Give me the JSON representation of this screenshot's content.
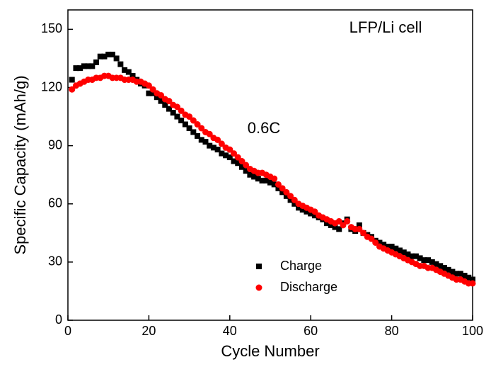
{
  "chart_data": {
    "type": "scatter",
    "x_label": "Cycle Number",
    "y_label": "Specific Capacity (mAh/g)",
    "annotations": [
      "LFP/Li cell",
      "0.6C"
    ],
    "xlim": [
      0,
      100
    ],
    "xticks": [
      0,
      20,
      40,
      60,
      80,
      100
    ],
    "ylim": [
      0,
      160
    ],
    "yticks": [
      0,
      30,
      60,
      90,
      120,
      150
    ],
    "x": [
      1,
      2,
      3,
      4,
      5,
      6,
      7,
      8,
      9,
      10,
      11,
      12,
      13,
      14,
      15,
      16,
      17,
      18,
      19,
      20,
      21,
      22,
      23,
      24,
      25,
      26,
      27,
      28,
      29,
      30,
      31,
      32,
      33,
      34,
      35,
      36,
      37,
      38,
      39,
      40,
      41,
      42,
      43,
      44,
      45,
      46,
      47,
      48,
      49,
      50,
      51,
      52,
      53,
      54,
      55,
      56,
      57,
      58,
      59,
      60,
      61,
      62,
      63,
      64,
      65,
      66,
      67,
      68,
      69,
      70,
      71,
      72,
      73,
      74,
      75,
      76,
      77,
      78,
      79,
      80,
      81,
      82,
      83,
      84,
      85,
      86,
      87,
      88,
      89,
      90,
      91,
      92,
      93,
      94,
      95,
      96,
      97,
      98,
      99,
      100
    ],
    "series": [
      {
        "name": "Charge",
        "color": "#000000",
        "marker": "square",
        "values": [
          124,
          130,
          130,
          131,
          131,
          131,
          133,
          136,
          136,
          137,
          137,
          135,
          132,
          129,
          128,
          126,
          124,
          122,
          121,
          117,
          117,
          115,
          113,
          111,
          109,
          107,
          105,
          103,
          101,
          99,
          97,
          95,
          93,
          92,
          90,
          89,
          88,
          86,
          85,
          84,
          82,
          81,
          79,
          77,
          75,
          74,
          73,
          72,
          72,
          71,
          70,
          68,
          66,
          64,
          62,
          60,
          58,
          57,
          56,
          55,
          54,
          53,
          52,
          50,
          49,
          48,
          47,
          50,
          52,
          47,
          46,
          49,
          45,
          44,
          43,
          41,
          40,
          39,
          38,
          38,
          37,
          36,
          35,
          34,
          33,
          33,
          32,
          31,
          31,
          30,
          29,
          28,
          27,
          26,
          25,
          24,
          24,
          23,
          22,
          21
        ]
      },
      {
        "name": "Discharge",
        "color": "#ff0000",
        "marker": "circle",
        "values": [
          119,
          121,
          122,
          123,
          124,
          124,
          125,
          125,
          126,
          126,
          125,
          125,
          125,
          124,
          124,
          124,
          123,
          123,
          122,
          121,
          119,
          117,
          116,
          114,
          113,
          111,
          110,
          108,
          106,
          105,
          103,
          101,
          99,
          97,
          96,
          94,
          93,
          91,
          89,
          88,
          86,
          84,
          82,
          80,
          78,
          77,
          76,
          76,
          75,
          74,
          73,
          70,
          68,
          66,
          64,
          62,
          60,
          59,
          58,
          57,
          56,
          54,
          53,
          52,
          51,
          50,
          51,
          49,
          51,
          48,
          47,
          47,
          45,
          43,
          42,
          40,
          38,
          37,
          36,
          35,
          34,
          33,
          32,
          31,
          30,
          29,
          28,
          28,
          27,
          27,
          26,
          25,
          24,
          23,
          22,
          21,
          21,
          20,
          19,
          19
        ]
      }
    ]
  }
}
